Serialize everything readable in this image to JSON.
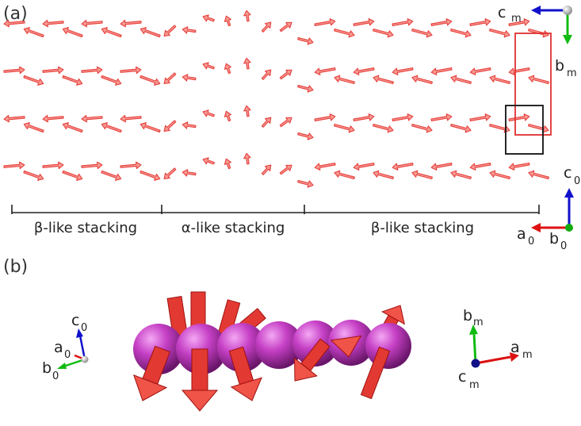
{
  "panel_a": {
    "label": "(a)",
    "regions": [
      {
        "text": "β-like stacking"
      },
      {
        "text": "α-like stacking"
      },
      {
        "text": "β-like stacking"
      }
    ],
    "axes_magnetic": {
      "c_main": "c",
      "c_sub": "m",
      "b_main": "b",
      "b_sub": "m"
    },
    "axes_lattice": {
      "c_main": "c",
      "c_sub": "0",
      "a_main": "a",
      "a_sub": "0",
      "b_main": "b",
      "b_sub": "0"
    }
  },
  "panel_b": {
    "label": "(b)",
    "axes_lattice": {
      "c_main": "c",
      "c_sub": "0",
      "a_main": "a",
      "a_sub": "0",
      "b_main": "b",
      "b_sub": "0"
    },
    "axes_magnetic": {
      "b_main": "b",
      "b_sub": "m",
      "a_main": "a",
      "a_sub": "m",
      "c_main": "c",
      "c_sub": "m"
    }
  },
  "colors": {
    "spin_arrow": "#e8403c",
    "sphere": "#c040c0",
    "axis_red": "#dd1111",
    "axis_green": "#11bb11",
    "axis_blue": "#1111cc",
    "highlight_box_red": "#e03030",
    "highlight_box_black": "#111111"
  }
}
